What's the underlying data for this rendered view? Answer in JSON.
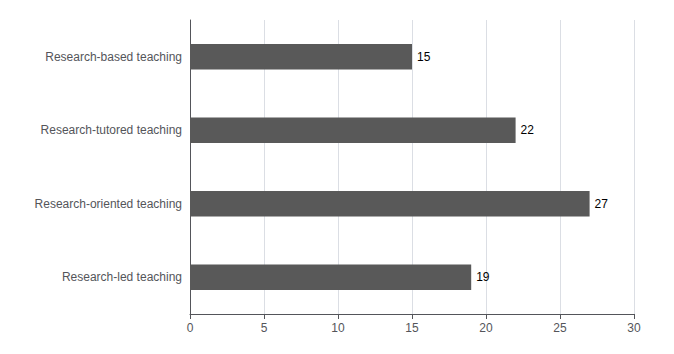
{
  "chart_data": {
    "type": "bar",
    "orientation": "horizontal",
    "categories": [
      "Research-led teaching",
      "Research-oriented teaching",
      "Research-tutored teaching",
      "Research-based teaching"
    ],
    "values": [
      19,
      27,
      22,
      15
    ],
    "color": "#595959",
    "xlim": [
      0,
      30
    ],
    "xticks": [
      0,
      5,
      10,
      15,
      20,
      25,
      30
    ],
    "grid": true,
    "data_labels": true
  }
}
